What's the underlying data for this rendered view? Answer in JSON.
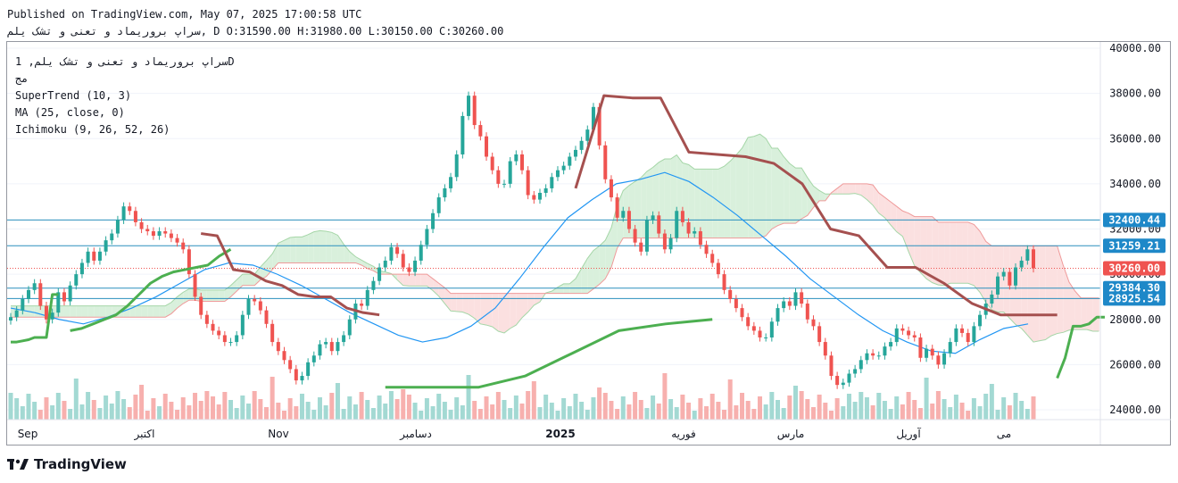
{
  "header": {
    "published": "Published on TradingView.com, May 07, 2025 17:00:58 UTC",
    "symbol_line": "سراپ بروریماد و تعنی و تشک یلم, D O:31590.00 H:31980.00 L:30150.00 C:30260.00"
  },
  "legend": {
    "title": "سراپ بروریماد و تعنی و تشک یلم, 1D",
    "subtitle": "مج",
    "supertrend": "SuperTrend (10, 3)",
    "ma": "MA (25, close, 0)",
    "ichimoku": "Ichimoku (9, 26, 52, 26)"
  },
  "brand": {
    "name": "TradingView"
  },
  "colors": {
    "up": "#26a69a",
    "down": "#ef5350",
    "supertrend_up": "#4caf50",
    "supertrend_down": "#a5504f",
    "ma": "#2196f3",
    "cloud_bull": "#d9f0dc",
    "cloud_bear": "#fbe0e0",
    "level": "#2962ff"
  },
  "chart_data": {
    "type": "line",
    "title": "سراپ بروریماد و تعنی و تشک یلم, 1D",
    "x_tick_labels": [
      "Sep",
      "اکتبر",
      "Nov",
      "دسامبر",
      "2025",
      "فوریه",
      "مارس",
      "آوریل",
      "می"
    ],
    "y_ticks": [
      24000,
      26000,
      28000,
      30000,
      32000,
      34000,
      36000,
      38000,
      40000
    ],
    "ylim": [
      23500,
      40200
    ],
    "ohlc": {
      "open": 31590.0,
      "high": 31980.0,
      "low": 30150.0,
      "close": 30260.0
    },
    "price_levels": [
      {
        "label": "32400.44",
        "value": 32400.44,
        "style": "line"
      },
      {
        "label": "31259.21",
        "value": 31259.21,
        "style": "line"
      },
      {
        "label": "30260.00",
        "value": 30260.0,
        "style": "last"
      },
      {
        "label": "29384.30",
        "value": 29384.3,
        "style": "line"
      },
      {
        "label": "28925.54",
        "value": 28925.54,
        "style": "line"
      }
    ],
    "closes": [
      28100,
      28400,
      28900,
      29300,
      29600,
      28600,
      28000,
      28300,
      29200,
      28800,
      29500,
      30000,
      30500,
      31000,
      30600,
      31000,
      31500,
      31800,
      32400,
      33000,
      32800,
      32300,
      32000,
      31900,
      31700,
      31900,
      31800,
      31600,
      31400,
      31100,
      30000,
      29000,
      28200,
      27800,
      27500,
      27300,
      27000,
      27000,
      27300,
      28200,
      28900,
      28800,
      28400,
      27800,
      27000,
      26600,
      26200,
      25800,
      25300,
      25500,
      26100,
      26400,
      26900,
      27000,
      26600,
      27000,
      27300,
      28000,
      28700,
      28600,
      29300,
      29700,
      30300,
      30600,
      31200,
      30900,
      30300,
      30100,
      30600,
      31300,
      32000,
      32700,
      33400,
      33800,
      34300,
      35300,
      37000,
      37900,
      36600,
      36100,
      35200,
      34600,
      34000,
      34000,
      35000,
      35300,
      34600,
      33500,
      33300,
      33600,
      33800,
      34300,
      34600,
      34800,
      35200,
      35500,
      35900,
      36400,
      37400,
      35700,
      34200,
      33400,
      32500,
      32800,
      32000,
      31400,
      31000,
      32400,
      32600,
      31800,
      31100,
      31600,
      32800,
      32300,
      31800,
      31900,
      31300,
      30900,
      30500,
      30000,
      29300,
      28900,
      28500,
      28100,
      27700,
      27500,
      27200,
      27200,
      27900,
      28500,
      28800,
      28600,
      29200,
      28700,
      28000,
      27700,
      27000,
      26400,
      25500,
      25100,
      25200,
      25600,
      25800,
      26200,
      26500,
      26400,
      26400,
      26800,
      27000,
      27600,
      27500,
      27300,
      27200,
      26300,
      26700,
      26400,
      26000,
      26500,
      27000,
      27600,
      27400,
      27000,
      27700,
      28200,
      28700,
      29100,
      29900,
      30100,
      29500,
      30300,
      30600,
      31100,
      30260
    ],
    "supertrend": {
      "up_segments": [
        {
          "from": 0,
          "to": 8,
          "values": [
            27000,
            27000,
            27050,
            27100,
            27200,
            27200,
            27200,
            29100,
            29100
          ]
        },
        {
          "from": 10,
          "to": 37,
          "values": [
            27500,
            27600,
            27800,
            28000,
            28200,
            28600,
            29100,
            29600,
            29900,
            30100,
            30200,
            30300,
            30400,
            30800,
            31100
          ]
        },
        {
          "from": 63,
          "to": 118,
          "values": [
            25000,
            25000,
            25000,
            25500,
            26500,
            27500,
            27800,
            28000
          ]
        },
        {
          "from": 176,
          "to": 184,
          "values": [
            25400,
            26300,
            27700,
            27700,
            27800,
            28100,
            28100
          ]
        }
      ],
      "down_segments": [
        {
          "from": 32,
          "to": 62,
          "values": [
            31800,
            31700,
            30200,
            30100,
            29700,
            29500,
            29100,
            29000,
            29000,
            28500,
            28300,
            28200
          ]
        },
        {
          "from": 95,
          "to": 176,
          "values": [
            33800,
            37900,
            37800,
            37800,
            35400,
            35300,
            35200,
            34900,
            34000,
            32000,
            31700,
            30300,
            30300,
            29600,
            28700,
            28200,
            28200,
            28200
          ]
        }
      ]
    },
    "ma25": [
      28500,
      28300,
      28000,
      27800,
      28100,
      28500,
      29000,
      29600,
      30200,
      30500,
      30400,
      30000,
      29500,
      28900,
      28300,
      27800,
      27300,
      27000,
      27200,
      27700,
      28500,
      29800,
      31200,
      32500,
      33300,
      34000,
      34200,
      34500,
      34100,
      33400,
      32600,
      31700,
      30800,
      29800,
      29000,
      28200,
      27500,
      27000,
      26600,
      26500,
      27100,
      27600,
      27800
    ]
  }
}
